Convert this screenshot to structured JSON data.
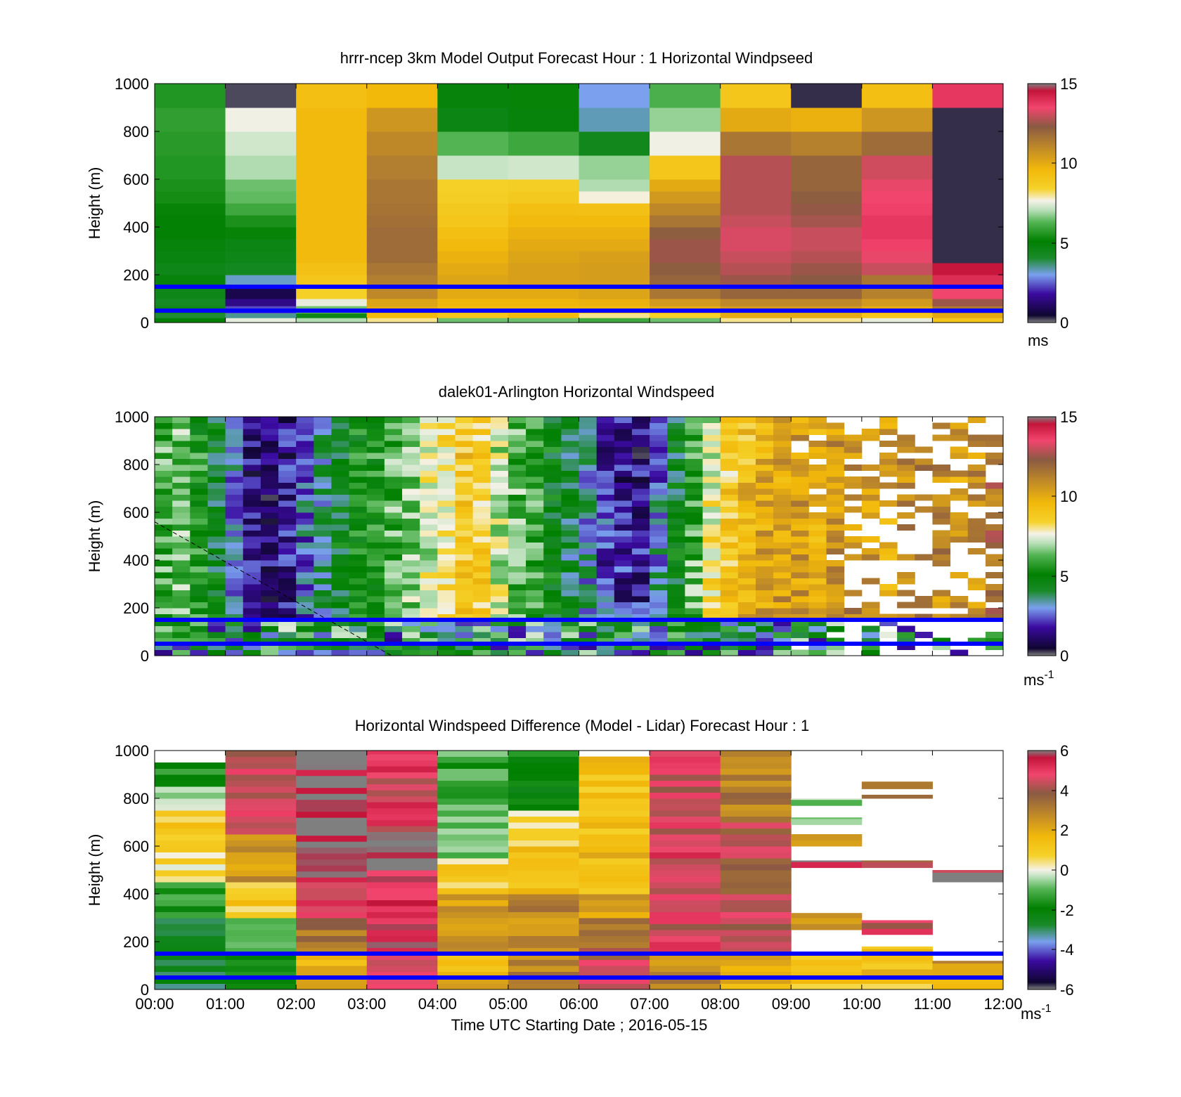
{
  "figure": {
    "xlabel": "Time UTC  Starting Date ; 2016-05-15",
    "x_ticks": [
      "00:00",
      "01:00",
      "02:00",
      "03:00",
      "04:00",
      "05:00",
      "06:00",
      "07:00",
      "08:00",
      "09:00",
      "10:00",
      "11:00",
      "12:00"
    ],
    "reference_heights_m": [
      150,
      50
    ],
    "reference_line_color": "#0000ff"
  },
  "colorscales": {
    "speed": [
      [
        0,
        "#7f7f7f"
      ],
      [
        0.03,
        "#0f0530"
      ],
      [
        0.12,
        "#3a0aa0"
      ],
      [
        0.2,
        "#7aa0ee"
      ],
      [
        0.27,
        "#1a8a2a"
      ],
      [
        0.34,
        "#008000"
      ],
      [
        0.42,
        "#52b452"
      ],
      [
        0.47,
        "#b8dfb8"
      ],
      [
        0.51,
        "#f5f2e8"
      ],
      [
        0.56,
        "#f5d22a"
      ],
      [
        0.64,
        "#f2b80a"
      ],
      [
        0.73,
        "#c08a28"
      ],
      [
        0.82,
        "#8a5a42"
      ],
      [
        0.9,
        "#f2456e"
      ],
      [
        0.97,
        "#c4143a"
      ],
      [
        1,
        "#7f7f7f"
      ]
    ],
    "diff": [
      [
        0,
        "#7f7f7f"
      ],
      [
        0.03,
        "#0f0530"
      ],
      [
        0.12,
        "#3a0aa0"
      ],
      [
        0.2,
        "#7aa0ee"
      ],
      [
        0.27,
        "#1a8a2a"
      ],
      [
        0.34,
        "#008000"
      ],
      [
        0.42,
        "#52b452"
      ],
      [
        0.47,
        "#b8dfb8"
      ],
      [
        0.5,
        "#f5f2e8"
      ],
      [
        0.56,
        "#f5d22a"
      ],
      [
        0.64,
        "#f2b80a"
      ],
      [
        0.73,
        "#c08a28"
      ],
      [
        0.82,
        "#8a5a42"
      ],
      [
        0.9,
        "#f2456e"
      ],
      [
        0.97,
        "#c4143a"
      ],
      [
        1,
        "#7f7f7f"
      ]
    ]
  },
  "chart_data": [
    {
      "type": "heatmap",
      "title": "hrrr-ncep 3km Model Output   Forecast Hour : 1 Horizontal Windpseed",
      "xlabel": "Time UTC",
      "ylabel": "Height (m)",
      "ylim": [
        0,
        1000
      ],
      "y_ticks": [
        "0",
        "200",
        "400",
        "600",
        "800",
        "1000"
      ],
      "colorbar": {
        "min": 0,
        "max": 15,
        "ticks": [
          "0",
          "5",
          "10",
          "15"
        ],
        "unit": "ms",
        "unit_sup": "",
        "scale": "speed"
      },
      "x": [
        "00:00",
        "01:00",
        "02:00",
        "03:00",
        "04:00",
        "05:00",
        "06:00",
        "07:00",
        "08:00",
        "09:00",
        "10:00",
        "11:00"
      ],
      "height_edges": [
        0,
        20,
        40,
        70,
        100,
        150,
        200,
        250,
        300,
        350,
        400,
        450,
        500,
        550,
        600,
        700,
        800,
        900,
        1000
      ],
      "values": [
        [
          5.0,
          4.0,
          4.5,
          4.2,
          4.5,
          4.8,
          4.5,
          4.7,
          4.8,
          5.0,
          5.0,
          5.2,
          5.4,
          5.5,
          5.6,
          5.7,
          5.8,
          5.6
        ],
        [
          7.5,
          3.5,
          2.3,
          1.5,
          0.8,
          3.2,
          4.3,
          4.5,
          4.6,
          5.2,
          5.5,
          6.0,
          6.4,
          6.5,
          7.0,
          7.3,
          7.6,
          0.2
        ],
        [
          7.0,
          4.5,
          6.5,
          7.5,
          8.5,
          9.0,
          9.2,
          9.5,
          9.5,
          9.5,
          9.5,
          9.5,
          9.5,
          9.5,
          9.5,
          9.5,
          9.5,
          9.3
        ],
        [
          8.0,
          9.5,
          10.0,
          10.2,
          11.0,
          11.3,
          11.5,
          11.8,
          11.8,
          11.8,
          11.7,
          11.6,
          11.5,
          11.5,
          11.3,
          11.0,
          10.6,
          9.6
        ],
        [
          6.5,
          9.0,
          9.5,
          9.7,
          10.0,
          10.2,
          10.0,
          9.8,
          9.5,
          9.3,
          9.0,
          8.8,
          8.6,
          8.5,
          7.2,
          6.3,
          4.6,
          4.8
        ],
        [
          6.5,
          9.5,
          9.5,
          9.7,
          10.0,
          10.3,
          10.3,
          10.2,
          10.0,
          9.8,
          9.5,
          9.3,
          8.8,
          8.6,
          7.3,
          6.0,
          4.8,
          5.2
        ],
        [
          6.0,
          8.0,
          9.5,
          9.8,
          10.2,
          10.4,
          10.4,
          10.3,
          10.0,
          9.8,
          9.5,
          9.2,
          7.7,
          7.0,
          6.8,
          4.4,
          3.3,
          3.0
        ],
        [
          6.5,
          8.5,
          10.0,
          10.5,
          11.5,
          12.0,
          12.2,
          12.5,
          12.5,
          12.2,
          11.5,
          11.0,
          10.5,
          10.0,
          9.0,
          7.6,
          6.8,
          6.2
        ],
        [
          8.0,
          10.0,
          10.5,
          11.0,
          12.0,
          12.5,
          12.8,
          13.0,
          13.2,
          13.2,
          13.0,
          12.8,
          12.8,
          12.8,
          12.8,
          11.5,
          10.0,
          9.0
        ],
        [
          8.0,
          10.0,
          10.5,
          11.0,
          12.0,
          12.3,
          12.5,
          12.8,
          13.0,
          13.0,
          12.6,
          12.4,
          12.2,
          12.0,
          12.0,
          11.2,
          9.8,
          0.3
        ],
        [
          7.5,
          9.0,
          10.0,
          10.5,
          11.2,
          11.5,
          13.0,
          13.4,
          13.6,
          13.8,
          13.8,
          13.6,
          13.5,
          13.4,
          13.1,
          11.8,
          10.6,
          9.3
        ],
        [
          9.0,
          10.0,
          11.5,
          12.5,
          13.5,
          14.0,
          14.5,
          0.3,
          0.3,
          0.3,
          0.3,
          0.3,
          0.3,
          0.3,
          0.3,
          0.3,
          0.3,
          13.8
        ]
      ]
    },
    {
      "type": "heatmap",
      "title": "dalek01-Arlington  Horizontal Windspeed",
      "xlabel": "Time UTC",
      "ylabel": "Height (m)",
      "ylim": [
        0,
        1000
      ],
      "y_ticks": [
        "0",
        "200",
        "400",
        "600",
        "800",
        "1000"
      ],
      "colorbar": {
        "min": 0,
        "max": 15,
        "ticks": [
          "0",
          "5",
          "10",
          "15"
        ],
        "unit": "ms",
        "unit_sup": "-1",
        "scale": "speed"
      },
      "x_range_hours": [
        0,
        12
      ],
      "profile_interval_min": 15,
      "height_bin_m": 25,
      "column_speed_ms": [
        6.0,
        6.5,
        5.5,
        4.5,
        3.0,
        1.5,
        1.3,
        1.6,
        2.8,
        3.5,
        4.5,
        5.2,
        5.6,
        6.2,
        6.7,
        7.4,
        8.2,
        9.0,
        8.6,
        7.2,
        6.3,
        5.8,
        4.8,
        4.0,
        3.3,
        2.6,
        2.2,
        2.0,
        3.4,
        5.0,
        6.5,
        8.3,
        9.3,
        10.0,
        10.5,
        10.8,
        10.4,
        9.9,
        10.6,
        10.9,
        10.6,
        10.3,
        10.9,
        11.3,
        10.9,
        10.4,
        10.9,
        11.6
      ],
      "reported_to_m": [
        1000,
        1000,
        1000,
        1000,
        1000,
        1000,
        1000,
        1000,
        1000,
        1000,
        1000,
        1000,
        1000,
        1000,
        1000,
        1000,
        1000,
        1000,
        1000,
        1000,
        1000,
        1000,
        1000,
        1000,
        1000,
        1000,
        1000,
        1000,
        1000,
        1000,
        1000,
        1000,
        1000,
        1000,
        1000,
        1000,
        1000,
        1000,
        1000,
        1000,
        1000,
        1000,
        1000,
        1000,
        1000,
        1000,
        1000,
        1000
      ],
      "coverage": [
        1,
        1,
        1,
        1,
        1,
        1,
        1,
        1,
        1,
        1,
        1,
        1,
        1,
        1,
        1,
        1,
        1,
        1,
        1,
        1,
        1,
        1,
        1,
        1,
        1,
        1,
        1,
        1,
        1,
        1,
        1,
        1,
        1,
        1,
        1,
        1,
        0.95,
        0.92,
        0.82,
        0.5,
        0.48,
        0.45,
        0.55,
        0.42,
        0.5,
        0.55,
        0.45,
        0.62
      ],
      "near_surface_speed_ms": 4.5,
      "dashed_line": {
        "from": {
          "hour": 0.0,
          "height_m": 560
        },
        "to": {
          "hour": 3.35,
          "height_m": 0
        }
      }
    },
    {
      "type": "heatmap",
      "title": "Horizontal Windspeed Difference (Model - Lidar) Forecast Hour : 1",
      "xlabel": "Time UTC  Starting Date ; 2016-05-15",
      "ylabel": "Height (m)",
      "ylim": [
        0,
        1000
      ],
      "y_ticks": [
        "0",
        "200",
        "400",
        "600",
        "800",
        "1000"
      ],
      "colorbar": {
        "min": -6,
        "max": 6,
        "ticks": [
          "-6",
          "-4",
          "-2",
          "0",
          "2",
          "4",
          "6"
        ],
        "unit": "ms",
        "unit_sup": "-1",
        "scale": "diff"
      },
      "x": [
        "00:00",
        "01:00",
        "02:00",
        "03:00",
        "04:00",
        "05:00",
        "06:00",
        "07:00",
        "08:00",
        "09:00",
        "10:00",
        "11:00"
      ],
      "height_bin_m": 25,
      "column_profiles": [
        {
          "segments": [
            [
              0,
              150,
              -2.5
            ],
            [
              150,
              300,
              -2.8
            ],
            [
              300,
              450,
              -1.5
            ],
            [
              450,
              600,
              0.5
            ],
            [
              600,
              750,
              1.0
            ],
            [
              750,
              850,
              -0.3
            ],
            [
              850,
              1000,
              -1.5
            ]
          ],
          "reported_to_m": 970
        },
        {
          "segments": [
            [
              0,
              150,
              -1.5
            ],
            [
              150,
              300,
              -1.0
            ],
            [
              300,
              450,
              1.0
            ],
            [
              450,
              650,
              2.5
            ],
            [
              650,
              850,
              4.5
            ],
            [
              850,
              1000,
              4.6
            ]
          ],
          "reported_to_m": 1000
        },
        {
          "segments": [
            [
              0,
              150,
              1.8
            ],
            [
              150,
              300,
              3.2
            ],
            [
              300,
              470,
              4.8
            ],
            [
              470,
              1000,
              6.0
            ]
          ],
          "reported_to_m": 1000
        },
        {
          "segments": [
            [
              0,
              150,
              4.5
            ],
            [
              150,
              500,
              5.2
            ],
            [
              500,
              660,
              6.0
            ],
            [
              660,
              1000,
              4.8
            ]
          ],
          "reported_to_m": 1000
        },
        {
          "segments": [
            [
              0,
              150,
              1.8
            ],
            [
              150,
              400,
              2.2
            ],
            [
              400,
              550,
              0.8
            ],
            [
              550,
              750,
              -0.8
            ],
            [
              750,
              1000,
              -1.2
            ]
          ],
          "reported_to_m": 1000
        },
        {
          "segments": [
            [
              0,
              150,
              3.0
            ],
            [
              150,
              400,
              2.8
            ],
            [
              400,
              600,
              1.5
            ],
            [
              600,
              750,
              0.5
            ],
            [
              750,
              1000,
              -1.8
            ]
          ],
          "reported_to_m": 1000
        },
        {
          "segments": [
            [
              0,
              150,
              4.2
            ],
            [
              150,
              300,
              3.5
            ],
            [
              300,
              400,
              2.4
            ],
            [
              400,
              600,
              1.5
            ],
            [
              600,
              1000,
              1.2
            ]
          ],
          "reported_to_m": 980
        },
        {
          "segments": [
            [
              0,
              150,
              2.8
            ],
            [
              150,
              300,
              4.6
            ],
            [
              300,
              600,
              4.7
            ],
            [
              600,
              1000,
              4.4
            ]
          ],
          "reported_to_m": 1000
        },
        {
          "segments": [
            [
              0,
              150,
              1.8
            ],
            [
              150,
              400,
              4.4
            ],
            [
              400,
              700,
              4.0
            ],
            [
              700,
              1000,
              3.0
            ]
          ],
          "reported_to_m": 1000
        },
        {
          "segments": [
            [
              0,
              150,
              1.0
            ],
            [
              250,
              320,
              2.6
            ],
            [
              510,
              540,
              6.0
            ],
            [
              600,
              650,
              2.5
            ],
            [
              690,
              720,
              -0.8
            ],
            [
              770,
              800,
              -0.8
            ]
          ],
          "reported_to_m": 800
        },
        {
          "segments": [
            [
              0,
              60,
              1.2
            ],
            [
              60,
              120,
              1.5
            ],
            [
              120,
              180,
              1.4
            ],
            [
              230,
              290,
              4.6
            ],
            [
              510,
              540,
              3.8
            ],
            [
              800,
              815,
              3.0
            ],
            [
              840,
              870,
              3.0
            ]
          ],
          "reported_to_m": 870
        },
        {
          "segments": [
            [
              0,
              60,
              1.3
            ],
            [
              60,
              120,
              2.5
            ],
            [
              450,
              490,
              6.0
            ],
            [
              490,
              500,
              4.5
            ]
          ],
          "reported_to_m": 500
        }
      ]
    }
  ]
}
